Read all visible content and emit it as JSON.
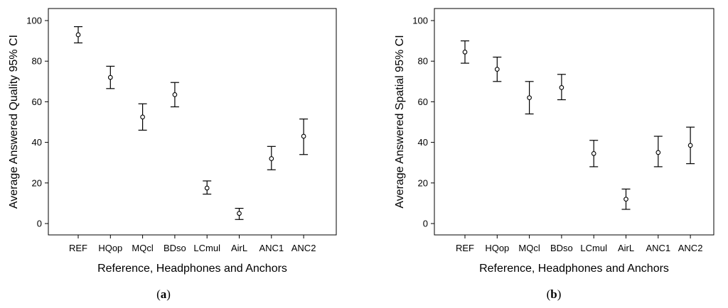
{
  "chart_data": [
    {
      "type": "scatter",
      "panel_label": "a",
      "categories": [
        "REF",
        "HQop",
        "MQcl",
        "BDso",
        "LCmul",
        "AirL",
        "ANC1",
        "ANC2"
      ],
      "means": [
        93,
        72,
        52.5,
        63.5,
        17.5,
        5,
        32,
        43
      ],
      "ci_low": [
        89,
        66.5,
        46,
        57.5,
        14.5,
        2,
        26.5,
        34
      ],
      "ci_high": [
        97,
        77.5,
        59,
        69.5,
        21,
        7.5,
        38,
        51.5
      ],
      "xlabel": "Reference, Headphones and Anchors",
      "ylabel": "Average Answered Quality 95% CI",
      "ylim": [
        0,
        100
      ],
      "yticks": [
        0,
        20,
        40,
        60,
        80,
        100
      ],
      "grid": false
    },
    {
      "type": "scatter",
      "panel_label": "b",
      "categories": [
        "REF",
        "HQop",
        "MQcl",
        "BDso",
        "LCmul",
        "AirL",
        "ANC1",
        "ANC2"
      ],
      "means": [
        84.5,
        76,
        62,
        67,
        34.5,
        12,
        35,
        38.5
      ],
      "ci_low": [
        79,
        70,
        54,
        61,
        28,
        7,
        28,
        29.5
      ],
      "ci_high": [
        90,
        82,
        70,
        73.5,
        41,
        17,
        43,
        47.5
      ],
      "xlabel": "Reference, Headphones and Anchors",
      "ylabel": "Average Answered Spatial 95% CI",
      "ylim": [
        0,
        100
      ],
      "yticks": [
        0,
        20,
        40,
        60,
        80,
        100
      ],
      "grid": false
    }
  ]
}
